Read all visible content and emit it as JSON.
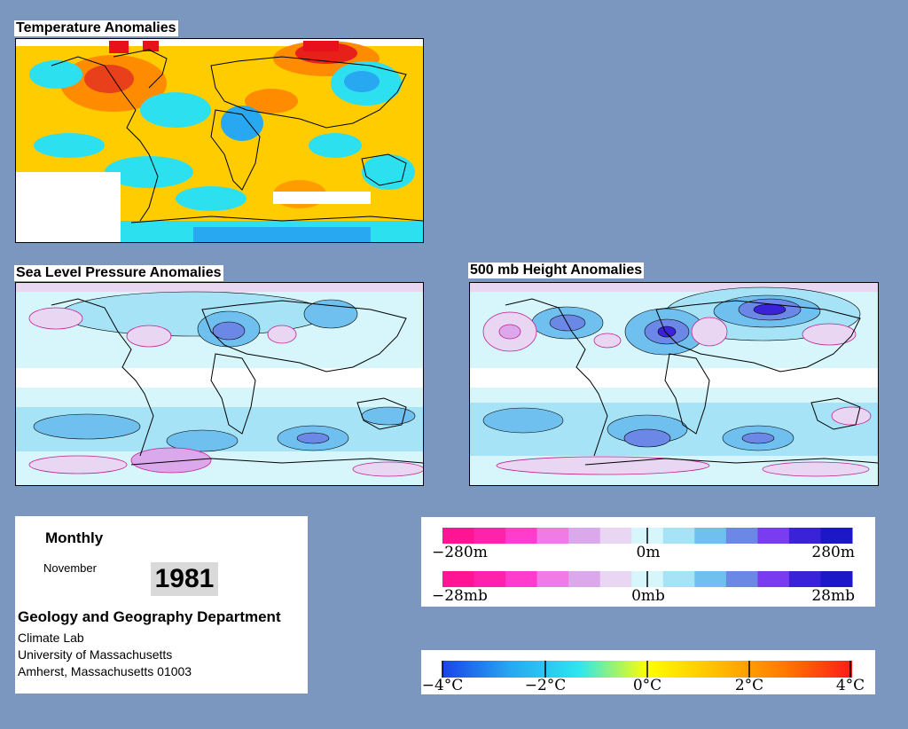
{
  "maps": {
    "temperature_title": "Temperature Anomalies",
    "slp_title": "Sea Level Pressure Anomalies",
    "height_title": "500 mb Height Anomalies"
  },
  "info": {
    "frequency": "Monthly",
    "month": "November",
    "year": "1981",
    "department": "Geology and Geography Department",
    "lab": "Climate Lab",
    "university": "University of Massachusetts",
    "address": "Amherst, Massachusetts 01003"
  },
  "legend_height": {
    "min": "−280m",
    "mid": "0m",
    "max": "280m"
  },
  "legend_pressure": {
    "min": "−28mb",
    "mid": "0mb",
    "max": "28mb"
  },
  "legend_temp": {
    "t1": "−4°C",
    "t2": "−2°C",
    "t3": "0°C",
    "t4": "2°C",
    "t5": "4°C"
  },
  "colors": {
    "background": "#7b97bf",
    "anomaly_scale": [
      "#ff1493",
      "#ff22aa",
      "#ff3ccc",
      "#f07ae6",
      "#dba8ec",
      "#e8d6f2",
      "#d6f6fb",
      "#a6e3f6",
      "#6fc0ee",
      "#6c88e6",
      "#7a3cf0",
      "#3a22d8",
      "#1c18c8"
    ],
    "temp_scale": [
      "#1a44e8",
      "#28a8f0",
      "#2ce6f0",
      "#ffff00",
      "#ffbf00",
      "#ff7a00",
      "#ff1a1a"
    ]
  }
}
